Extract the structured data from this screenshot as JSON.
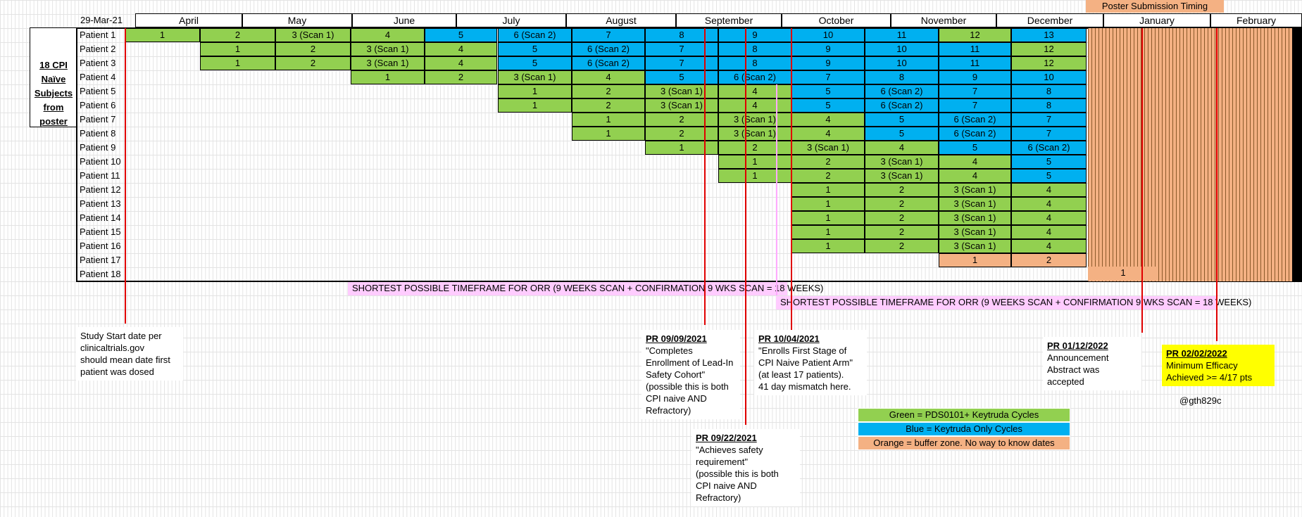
{
  "header": {
    "date": "29-Mar-21",
    "months": [
      "April",
      "May",
      "June",
      "July",
      "August",
      "September",
      "October",
      "November",
      "December",
      "January",
      "February"
    ],
    "poster_banner": "Poster Submission Timing"
  },
  "side_label": "18 CPI\nNaïve\nSubjects\nfrom\nposter",
  "patients": [
    "Patient 1",
    "Patient 2",
    "Patient 3",
    "Patient 4",
    "Patient 5",
    "Patient 6",
    "Patient 7",
    "Patient 8",
    "Patient 9",
    "Patient 10",
    "Patient 11",
    "Patient 12",
    "Patient 13",
    "Patient 14",
    "Patient 15",
    "Patient 16",
    "Patient 17",
    "Patient 18"
  ],
  "rows": [
    {
      "start": 0,
      "cells": [
        [
          "1",
          "g"
        ],
        [
          "2",
          "g"
        ],
        [
          "3 (Scan 1)",
          "g"
        ],
        [
          "4",
          "g"
        ],
        [
          "5",
          "b"
        ],
        [
          "6 (Scan 2)",
          "b"
        ],
        [
          "7",
          "b"
        ],
        [
          "8",
          "b"
        ],
        [
          "9",
          "b"
        ],
        [
          "10",
          "b"
        ],
        [
          "11",
          "b"
        ],
        [
          "12",
          "g"
        ],
        [
          "13",
          "b"
        ]
      ]
    },
    {
      "start": 1,
      "cells": [
        [
          "1",
          "g"
        ],
        [
          "2",
          "g"
        ],
        [
          "3 (Scan 1)",
          "g"
        ],
        [
          "4",
          "g"
        ],
        [
          "5",
          "b"
        ],
        [
          "6 (Scan 2)",
          "b"
        ],
        [
          "7",
          "b"
        ],
        [
          "8",
          "b"
        ],
        [
          "9",
          "b"
        ],
        [
          "10",
          "b"
        ],
        [
          "11",
          "b"
        ],
        [
          "12",
          "g"
        ]
      ]
    },
    {
      "start": 1,
      "cells": [
        [
          "1",
          "g"
        ],
        [
          "2",
          "g"
        ],
        [
          "3 (Scan 1)",
          "g"
        ],
        [
          "4",
          "g"
        ],
        [
          "5",
          "b"
        ],
        [
          "6 (Scan 2)",
          "b"
        ],
        [
          "7",
          "b"
        ],
        [
          "8",
          "b"
        ],
        [
          "9",
          "b"
        ],
        [
          "10",
          "b"
        ],
        [
          "11",
          "b"
        ],
        [
          "12",
          "g"
        ]
      ]
    },
    {
      "start": 3,
      "cells": [
        [
          "1",
          "g"
        ],
        [
          "2",
          "g"
        ],
        [
          "3 (Scan 1)",
          "g"
        ],
        [
          "4",
          "g"
        ],
        [
          "5",
          "b"
        ],
        [
          "6 (Scan 2)",
          "b"
        ],
        [
          "7",
          "b"
        ],
        [
          "8",
          "b"
        ],
        [
          "9",
          "b"
        ],
        [
          "10",
          "b"
        ]
      ]
    },
    {
      "start": 5,
      "cells": [
        [
          "1",
          "g"
        ],
        [
          "2",
          "g"
        ],
        [
          "3 (Scan 1)",
          "g"
        ],
        [
          "4",
          "g"
        ],
        [
          "5",
          "b"
        ],
        [
          "6 (Scan 2)",
          "b"
        ],
        [
          "7",
          "b"
        ],
        [
          "8",
          "b"
        ]
      ]
    },
    {
      "start": 5,
      "cells": [
        [
          "1",
          "g"
        ],
        [
          "2",
          "g"
        ],
        [
          "3 (Scan 1)",
          "g"
        ],
        [
          "4",
          "g"
        ],
        [
          "5",
          "b"
        ],
        [
          "6 (Scan 2)",
          "b"
        ],
        [
          "7",
          "b"
        ],
        [
          "8",
          "b"
        ]
      ]
    },
    {
      "start": 6,
      "cells": [
        [
          "1",
          "g"
        ],
        [
          "2",
          "g"
        ],
        [
          "3 (Scan 1)",
          "g"
        ],
        [
          "4",
          "g"
        ],
        [
          "5",
          "b"
        ],
        [
          "6 (Scan 2)",
          "b"
        ],
        [
          "7",
          "b"
        ]
      ]
    },
    {
      "start": 6,
      "cells": [
        [
          "1",
          "g"
        ],
        [
          "2",
          "g"
        ],
        [
          "3 (Scan 1)",
          "g"
        ],
        [
          "4",
          "g"
        ],
        [
          "5",
          "b"
        ],
        [
          "6 (Scan 2)",
          "b"
        ],
        [
          "7",
          "b"
        ]
      ]
    },
    {
      "start": 7,
      "cells": [
        [
          "1",
          "g"
        ],
        [
          "2",
          "g"
        ],
        [
          "3 (Scan 1)",
          "g"
        ],
        [
          "4",
          "g"
        ],
        [
          "5",
          "b"
        ],
        [
          "6 (Scan 2)",
          "b"
        ]
      ]
    },
    {
      "start": 8,
      "cells": [
        [
          "1",
          "g"
        ],
        [
          "2",
          "g"
        ],
        [
          "3 (Scan 1)",
          "g"
        ],
        [
          "4",
          "g"
        ],
        [
          "5",
          "b"
        ]
      ]
    },
    {
      "start": 8,
      "cells": [
        [
          "1",
          "g"
        ],
        [
          "2",
          "g"
        ],
        [
          "3 (Scan 1)",
          "g"
        ],
        [
          "4",
          "g"
        ],
        [
          "5",
          "b"
        ]
      ]
    },
    {
      "start": 9,
      "cells": [
        [
          "1",
          "g"
        ],
        [
          "2",
          "g"
        ],
        [
          "3 (Scan 1)",
          "g"
        ],
        [
          "4",
          "g"
        ]
      ]
    },
    {
      "start": 9,
      "cells": [
        [
          "1",
          "g"
        ],
        [
          "2",
          "g"
        ],
        [
          "3 (Scan 1)",
          "g"
        ],
        [
          "4",
          "g"
        ]
      ]
    },
    {
      "start": 9,
      "cells": [
        [
          "1",
          "g"
        ],
        [
          "2",
          "g"
        ],
        [
          "3 (Scan 1)",
          "g"
        ],
        [
          "4",
          "g"
        ]
      ]
    },
    {
      "start": 9,
      "cells": [
        [
          "1",
          "g"
        ],
        [
          "2",
          "g"
        ],
        [
          "3 (Scan 1)",
          "g"
        ],
        [
          "4",
          "g"
        ]
      ]
    },
    {
      "start": 9,
      "cells": [
        [
          "1",
          "g"
        ],
        [
          "2",
          "g"
        ],
        [
          "3 (Scan 1)",
          "g"
        ],
        [
          "4",
          "g"
        ]
      ]
    },
    {
      "start": 11,
      "cells": [
        [
          "1",
          "o"
        ],
        [
          "2",
          "o"
        ]
      ]
    },
    {
      "start": 13,
      "cells": [
        [
          "1",
          "o"
        ]
      ]
    }
  ],
  "orr_text": "SHORTEST POSSIBLE TIMEFRAME FOR ORR (9 WEEKS SCAN + CONFIRMATION 9 WKS SCAN = 18 WEEKS)",
  "notes": [
    {
      "title": "",
      "body": "Study Start date per\nclinicaltrials.gov\nshould mean date first\npatient was dosed"
    },
    {
      "title": "PR 09/09/2021",
      "body": "\"Completes\nEnrollment of Lead-In\nSafety Cohort\"\n(possible this is both\nCPI naive AND\nRefractory)"
    },
    {
      "title": "PR 10/04/2021",
      "body": "\"Enrolls First Stage of\nCPI Naive Patient Arm\"\n(at least 17 patients).\n41 day mismatch here."
    },
    {
      "title": "PR 09/22/2021",
      "body": "\"Achieves safety\nrequirement\"\n(possible this is both\nCPI naive AND\nRefractory)"
    },
    {
      "title": "PR 01/12/2022",
      "body": "Announcement\nAbstract was accepted"
    },
    {
      "title": "PR 02/02/2022",
      "body": "Minimum Efficacy\nAchieved >= 4/17 pts"
    }
  ],
  "handle": "@gth829c",
  "legend": [
    {
      "label": "Green = PDS0101+ Keytruda Cycles",
      "color": "#92d050"
    },
    {
      "label": "Blue = Keytruda Only Cycles",
      "color": "#00b0f0"
    },
    {
      "label": "Orange = buffer zone. No way to know dates",
      "color": "#f4b183"
    }
  ]
}
